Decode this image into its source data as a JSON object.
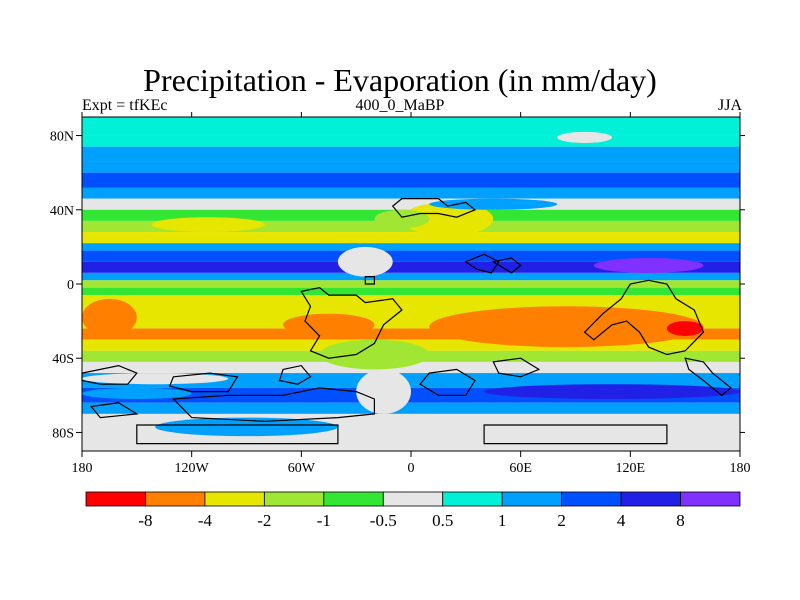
{
  "title": "Precipitation - Evaporation (in mm/day)",
  "subtitle_left": "Expt = tfKEc",
  "subtitle_center": "400_0_MaBP",
  "subtitle_right": "JJA",
  "chart_data": {
    "type": "heatmap",
    "projection": "cylindrical equidistant",
    "xlim": [
      -180,
      180
    ],
    "ylim": [
      -90,
      90
    ],
    "x_ticks": [
      {
        "value": -180,
        "label": "180"
      },
      {
        "value": -120,
        "label": "120W"
      },
      {
        "value": -60,
        "label": "60W"
      },
      {
        "value": 0,
        "label": "0"
      },
      {
        "value": 60,
        "label": "60E"
      },
      {
        "value": 120,
        "label": "120E"
      },
      {
        "value": 180,
        "label": "180"
      }
    ],
    "y_ticks": [
      {
        "value": 80,
        "label": "80N"
      },
      {
        "value": 40,
        "label": "40N"
      },
      {
        "value": 0,
        "label": "0"
      },
      {
        "value": -40,
        "label": "40S"
      },
      {
        "value": -80,
        "label": "80S"
      }
    ],
    "colorbar": {
      "boundaries": [
        "-8",
        "-4",
        "-2",
        "-1",
        "-0.5",
        "0.5",
        "1",
        "2",
        "4",
        "8"
      ],
      "colors": [
        "#ff0000",
        "#ff8000",
        "#e6e600",
        "#a0e632",
        "#33e633",
        "#e6e6e6",
        "#00f0d8",
        "#00a0ff",
        "#0050ff",
        "#2020e6",
        "#8030ff"
      ]
    },
    "zonal_bands": [
      {
        "lat": [
          80,
          90
        ],
        "value": 0.7
      },
      {
        "lat": [
          74,
          80
        ],
        "value": 0.8
      },
      {
        "lat": [
          66,
          74
        ],
        "value": 1.2
      },
      {
        "lat": [
          60,
          66
        ],
        "value": 1.5
      },
      {
        "lat": [
          52,
          60
        ],
        "value": 3.0
      },
      {
        "lat": [
          46,
          52
        ],
        "value": 1.5
      },
      {
        "lat": [
          40,
          46
        ],
        "value": 0.3
      },
      {
        "lat": [
          34,
          40
        ],
        "value": -0.7
      },
      {
        "lat": [
          28,
          34
        ],
        "value": -1.5
      },
      {
        "lat": [
          22,
          28
        ],
        "value": -2.5
      },
      {
        "lat": [
          18,
          22
        ],
        "value": 1.5
      },
      {
        "lat": [
          12,
          18
        ],
        "value": 3.0
      },
      {
        "lat": [
          6,
          12
        ],
        "value": 5.0
      },
      {
        "lat": [
          2,
          6
        ],
        "value": 1.5
      },
      {
        "lat": [
          -2,
          2
        ],
        "value": -1.5
      },
      {
        "lat": [
          -6,
          -2
        ],
        "value": -1.0
      },
      {
        "lat": [
          -14,
          -6
        ],
        "value": -2.5
      },
      {
        "lat": [
          -24,
          -14
        ],
        "value": -3.0
      },
      {
        "lat": [
          -30,
          -24
        ],
        "value": -5.0
      },
      {
        "lat": [
          -36,
          -30
        ],
        "value": -2.5
      },
      {
        "lat": [
          -42,
          -36
        ],
        "value": -1.5
      },
      {
        "lat": [
          -48,
          -42
        ],
        "value": 0.3
      },
      {
        "lat": [
          -56,
          -48
        ],
        "value": 1.2
      },
      {
        "lat": [
          -64,
          -56
        ],
        "value": 3.0
      },
      {
        "lat": [
          -70,
          -64
        ],
        "value": 1.5
      },
      {
        "lat": [
          -90,
          -70
        ],
        "value": 0.3
      }
    ],
    "features": [
      {
        "lon": [
          -142,
          -80
        ],
        "lat": [
          28,
          36
        ],
        "value": -3.0
      },
      {
        "lon": [
          -5,
          45
        ],
        "lat": [
          26,
          44
        ],
        "value": -3.0
      },
      {
        "lon": [
          -20,
          10
        ],
        "lat": [
          30,
          40
        ],
        "value": -1.5
      },
      {
        "lon": [
          10,
          80
        ],
        "lat": [
          40,
          46
        ],
        "value": 1.5
      },
      {
        "lon": [
          -180,
          -150
        ],
        "lat": [
          -28,
          -8
        ],
        "value": -5.0
      },
      {
        "lon": [
          -70,
          -20
        ],
        "lat": [
          -28,
          -16
        ],
        "value": -5.0
      },
      {
        "lon": [
          10,
          160
        ],
        "lat": [
          -34,
          -12
        ],
        "value": -5.0
      },
      {
        "lon": [
          140,
          160
        ],
        "lat": [
          -28,
          -20
        ],
        "value": -9.0
      },
      {
        "lon": [
          -50,
          10
        ],
        "lat": [
          -46,
          -30
        ],
        "value": -1.5
      },
      {
        "lon": [
          -40,
          -10
        ],
        "lat": [
          4,
          20
        ],
        "value": 0.3
      },
      {
        "lon": [
          -30,
          0
        ],
        "lat": [
          -70,
          -46
        ],
        "value": 0.3
      },
      {
        "lon": [
          -140,
          -40
        ],
        "lat": [
          -82,
          -72
        ],
        "value": 1.5
      },
      {
        "lon": [
          40,
          140
        ],
        "lat": [
          -82,
          -72
        ],
        "value": 0.3
      },
      {
        "lon": [
          40,
          180
        ],
        "lat": [
          -62,
          -54
        ],
        "value": 5.0
      },
      {
        "lon": [
          -180,
          -120
        ],
        "lat": [
          -62,
          -56
        ],
        "value": 1.5
      },
      {
        "lon": [
          -180,
          -100
        ],
        "lat": [
          -54,
          -48
        ],
        "value": 0.3
      },
      {
        "lon": [
          100,
          160
        ],
        "lat": [
          6,
          14
        ],
        "value": 9.0
      },
      {
        "lon": [
          80,
          110
        ],
        "lat": [
          76,
          82
        ],
        "value": 0.3
      }
    ]
  }
}
